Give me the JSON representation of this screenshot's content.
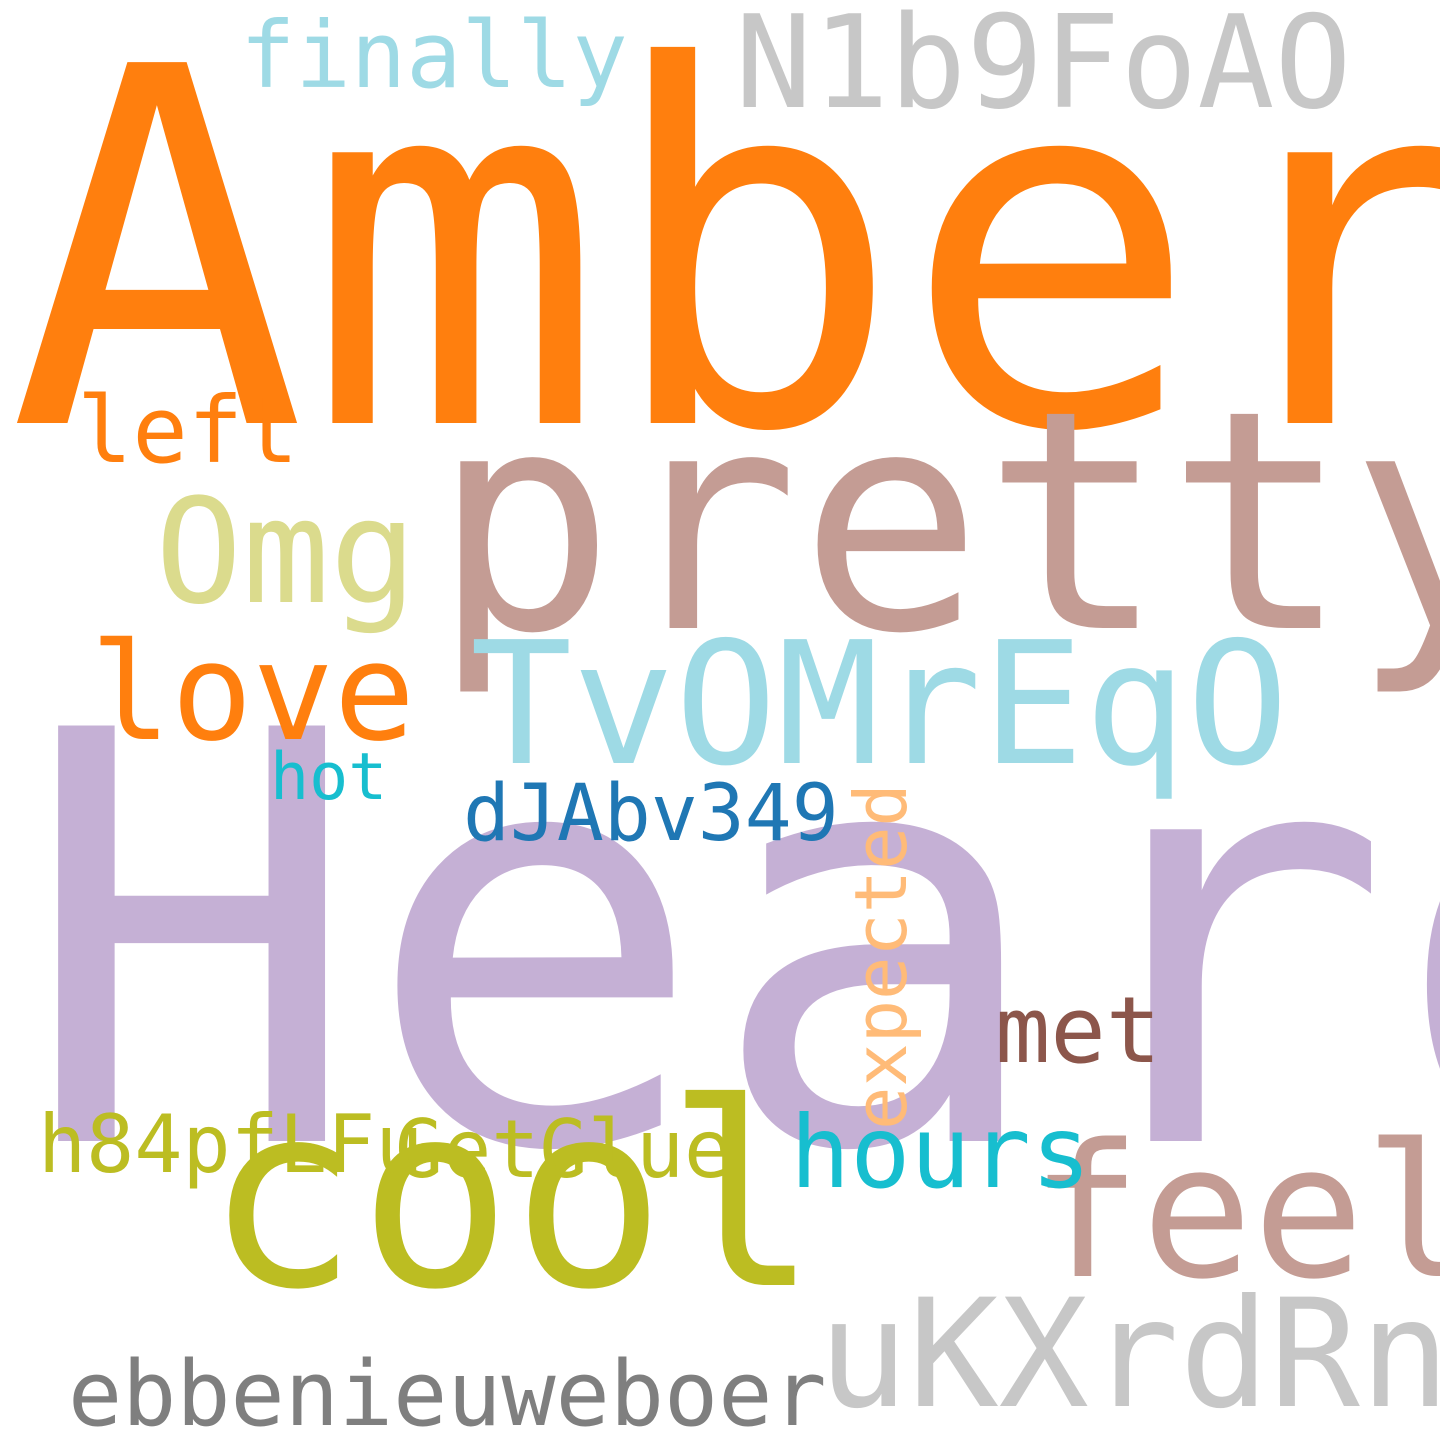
{
  "words": {
    "amber": "Amber",
    "heard": "Heard",
    "pretty": "pretty",
    "tvom": "TvOMrEqO",
    "cool": "cool",
    "feel": "feel",
    "ukx": "uKXrdRnV",
    "n1b": "N1b9FoAO",
    "finally": "finally",
    "left": "left",
    "omg": "Omg",
    "love": "love",
    "hot": "hot",
    "djab": "dJAbv349",
    "expected": "expected",
    "met": "met",
    "h84": "h84pfLFu",
    "getglue": "GetGlue",
    "hours": "hours",
    "ebben": "ebbenieuweboer"
  },
  "colors": {
    "orange": "#ff7f0e",
    "lavender": "#c5b0d5",
    "rose": "#c49c94",
    "light_cyan": "#9edae5",
    "olive": "#bcbd22",
    "light_gray": "#c7c7c7",
    "pale_olive": "#dbdb8d",
    "cyan": "#17becf",
    "blue": "#1f77b4",
    "brown": "#8c564b",
    "gray": "#7f7f7f",
    "peach": "#ffbb78"
  }
}
